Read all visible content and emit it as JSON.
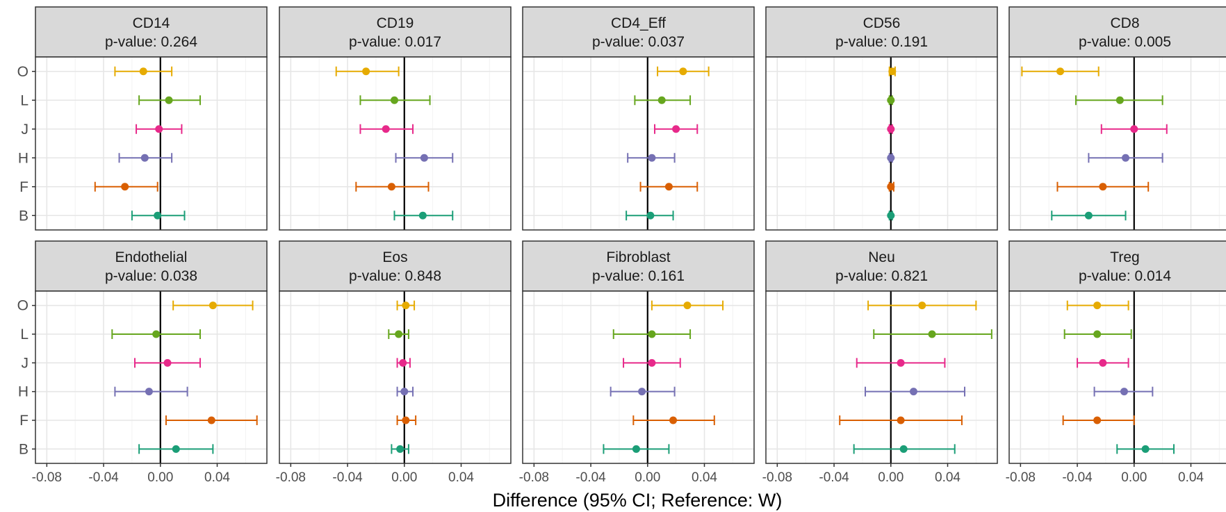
{
  "chart_data": {
    "type": "forest",
    "xlabel": "Difference (95% CI; Reference: W)",
    "xlim": [
      -0.088,
      0.075
    ],
    "x_ticks": [
      -0.08,
      -0.04,
      0.0,
      0.04
    ],
    "x_tick_labels": [
      "-0.08",
      "-0.04",
      "0.00",
      "0.04"
    ],
    "reference_line": 0,
    "grid": true,
    "categories": [
      "O",
      "L",
      "J",
      "H",
      "F",
      "B"
    ],
    "category_colors": {
      "O": "#E6AB02",
      "L": "#66A61E",
      "J": "#E7298A",
      "H": "#7570B3",
      "F": "#D95F02",
      "B": "#1B9E77"
    },
    "p_label": "p-value:",
    "panels": [
      {
        "title": "CD14",
        "p_value": "0.264",
        "points": [
          {
            "group": "O",
            "est": -0.012,
            "lo": -0.032,
            "hi": 0.008
          },
          {
            "group": "L",
            "est": 0.006,
            "lo": -0.015,
            "hi": 0.028
          },
          {
            "group": "J",
            "est": -0.001,
            "lo": -0.017,
            "hi": 0.015
          },
          {
            "group": "H",
            "est": -0.011,
            "lo": -0.029,
            "hi": 0.008
          },
          {
            "group": "F",
            "est": -0.025,
            "lo": -0.046,
            "hi": -0.002
          },
          {
            "group": "B",
            "est": -0.002,
            "lo": -0.02,
            "hi": 0.017
          }
        ]
      },
      {
        "title": "CD19",
        "p_value": "0.017",
        "points": [
          {
            "group": "O",
            "est": -0.027,
            "lo": -0.048,
            "hi": -0.004
          },
          {
            "group": "L",
            "est": -0.007,
            "lo": -0.031,
            "hi": 0.018
          },
          {
            "group": "J",
            "est": -0.013,
            "lo": -0.031,
            "hi": 0.006
          },
          {
            "group": "H",
            "est": 0.014,
            "lo": -0.006,
            "hi": 0.034
          },
          {
            "group": "F",
            "est": -0.009,
            "lo": -0.034,
            "hi": 0.017
          },
          {
            "group": "B",
            "est": 0.013,
            "lo": -0.007,
            "hi": 0.034
          }
        ]
      },
      {
        "title": "CD4_Eff",
        "p_value": "0.037",
        "points": [
          {
            "group": "O",
            "est": 0.025,
            "lo": 0.007,
            "hi": 0.043
          },
          {
            "group": "L",
            "est": 0.01,
            "lo": -0.009,
            "hi": 0.03
          },
          {
            "group": "J",
            "est": 0.02,
            "lo": 0.005,
            "hi": 0.035
          },
          {
            "group": "H",
            "est": 0.003,
            "lo": -0.014,
            "hi": 0.019
          },
          {
            "group": "F",
            "est": 0.015,
            "lo": -0.005,
            "hi": 0.035
          },
          {
            "group": "B",
            "est": 0.002,
            "lo": -0.015,
            "hi": 0.018
          }
        ]
      },
      {
        "title": "CD56",
        "p_value": "0.191",
        "points": [
          {
            "group": "O",
            "est": 0.001,
            "lo": -0.001,
            "hi": 0.003
          },
          {
            "group": "L",
            "est": 0.0,
            "lo": -0.001,
            "hi": 0.001
          },
          {
            "group": "J",
            "est": 0.0,
            "lo": -0.001,
            "hi": 0.001
          },
          {
            "group": "H",
            "est": 0.0,
            "lo": -0.001,
            "hi": 0.001
          },
          {
            "group": "F",
            "est": 0.0,
            "lo": -0.001,
            "hi": 0.002
          },
          {
            "group": "B",
            "est": 0.0,
            "lo": -0.001,
            "hi": 0.001
          }
        ]
      },
      {
        "title": "CD8",
        "p_value": "0.005",
        "points": [
          {
            "group": "O",
            "est": -0.052,
            "lo": -0.079,
            "hi": -0.025
          },
          {
            "group": "L",
            "est": -0.01,
            "lo": -0.041,
            "hi": 0.02
          },
          {
            "group": "J",
            "est": 0.0,
            "lo": -0.023,
            "hi": 0.023
          },
          {
            "group": "H",
            "est": -0.006,
            "lo": -0.032,
            "hi": 0.02
          },
          {
            "group": "F",
            "est": -0.022,
            "lo": -0.054,
            "hi": 0.01
          },
          {
            "group": "B",
            "est": -0.032,
            "lo": -0.058,
            "hi": -0.006
          }
        ]
      },
      {
        "title": "Endothelial",
        "p_value": "0.038",
        "points": [
          {
            "group": "O",
            "est": 0.037,
            "lo": 0.009,
            "hi": 0.065
          },
          {
            "group": "L",
            "est": -0.003,
            "lo": -0.034,
            "hi": 0.028
          },
          {
            "group": "J",
            "est": 0.005,
            "lo": -0.018,
            "hi": 0.028
          },
          {
            "group": "H",
            "est": -0.008,
            "lo": -0.032,
            "hi": 0.019
          },
          {
            "group": "F",
            "est": 0.036,
            "lo": 0.004,
            "hi": 0.068
          },
          {
            "group": "B",
            "est": 0.011,
            "lo": -0.015,
            "hi": 0.037
          }
        ]
      },
      {
        "title": "Eos",
        "p_value": "0.848",
        "points": [
          {
            "group": "O",
            "est": 0.001,
            "lo": -0.005,
            "hi": 0.007
          },
          {
            "group": "L",
            "est": -0.004,
            "lo": -0.011,
            "hi": 0.003
          },
          {
            "group": "J",
            "est": -0.001,
            "lo": -0.005,
            "hi": 0.004
          },
          {
            "group": "H",
            "est": 0.0,
            "lo": -0.005,
            "hi": 0.006
          },
          {
            "group": "F",
            "est": 0.001,
            "lo": -0.005,
            "hi": 0.008
          },
          {
            "group": "B",
            "est": -0.003,
            "lo": -0.009,
            "hi": 0.003
          }
        ]
      },
      {
        "title": "Fibroblast",
        "p_value": "0.161",
        "points": [
          {
            "group": "O",
            "est": 0.028,
            "lo": 0.003,
            "hi": 0.053
          },
          {
            "group": "L",
            "est": 0.003,
            "lo": -0.024,
            "hi": 0.03
          },
          {
            "group": "J",
            "est": 0.003,
            "lo": -0.017,
            "hi": 0.023
          },
          {
            "group": "H",
            "est": -0.004,
            "lo": -0.026,
            "hi": 0.019
          },
          {
            "group": "F",
            "est": 0.018,
            "lo": -0.01,
            "hi": 0.047
          },
          {
            "group": "B",
            "est": -0.008,
            "lo": -0.031,
            "hi": 0.015
          }
        ]
      },
      {
        "title": "Neu",
        "p_value": "0.821",
        "points": [
          {
            "group": "O",
            "est": 0.022,
            "lo": -0.016,
            "hi": 0.06
          },
          {
            "group": "L",
            "est": 0.029,
            "lo": -0.012,
            "hi": 0.071
          },
          {
            "group": "J",
            "est": 0.007,
            "lo": -0.024,
            "hi": 0.038
          },
          {
            "group": "H",
            "est": 0.016,
            "lo": -0.018,
            "hi": 0.052
          },
          {
            "group": "F",
            "est": 0.007,
            "lo": -0.036,
            "hi": 0.05
          },
          {
            "group": "B",
            "est": 0.009,
            "lo": -0.026,
            "hi": 0.045
          }
        ]
      },
      {
        "title": "Treg",
        "p_value": "0.014",
        "points": [
          {
            "group": "O",
            "est": -0.026,
            "lo": -0.047,
            "hi": -0.004
          },
          {
            "group": "L",
            "est": -0.026,
            "lo": -0.049,
            "hi": -0.002
          },
          {
            "group": "J",
            "est": -0.022,
            "lo": -0.04,
            "hi": -0.004
          },
          {
            "group": "H",
            "est": -0.007,
            "lo": -0.028,
            "hi": 0.013
          },
          {
            "group": "F",
            "est": -0.026,
            "lo": -0.05,
            "hi": 0.0
          },
          {
            "group": "B",
            "est": 0.008,
            "lo": -0.012,
            "hi": 0.028
          }
        ]
      }
    ]
  }
}
